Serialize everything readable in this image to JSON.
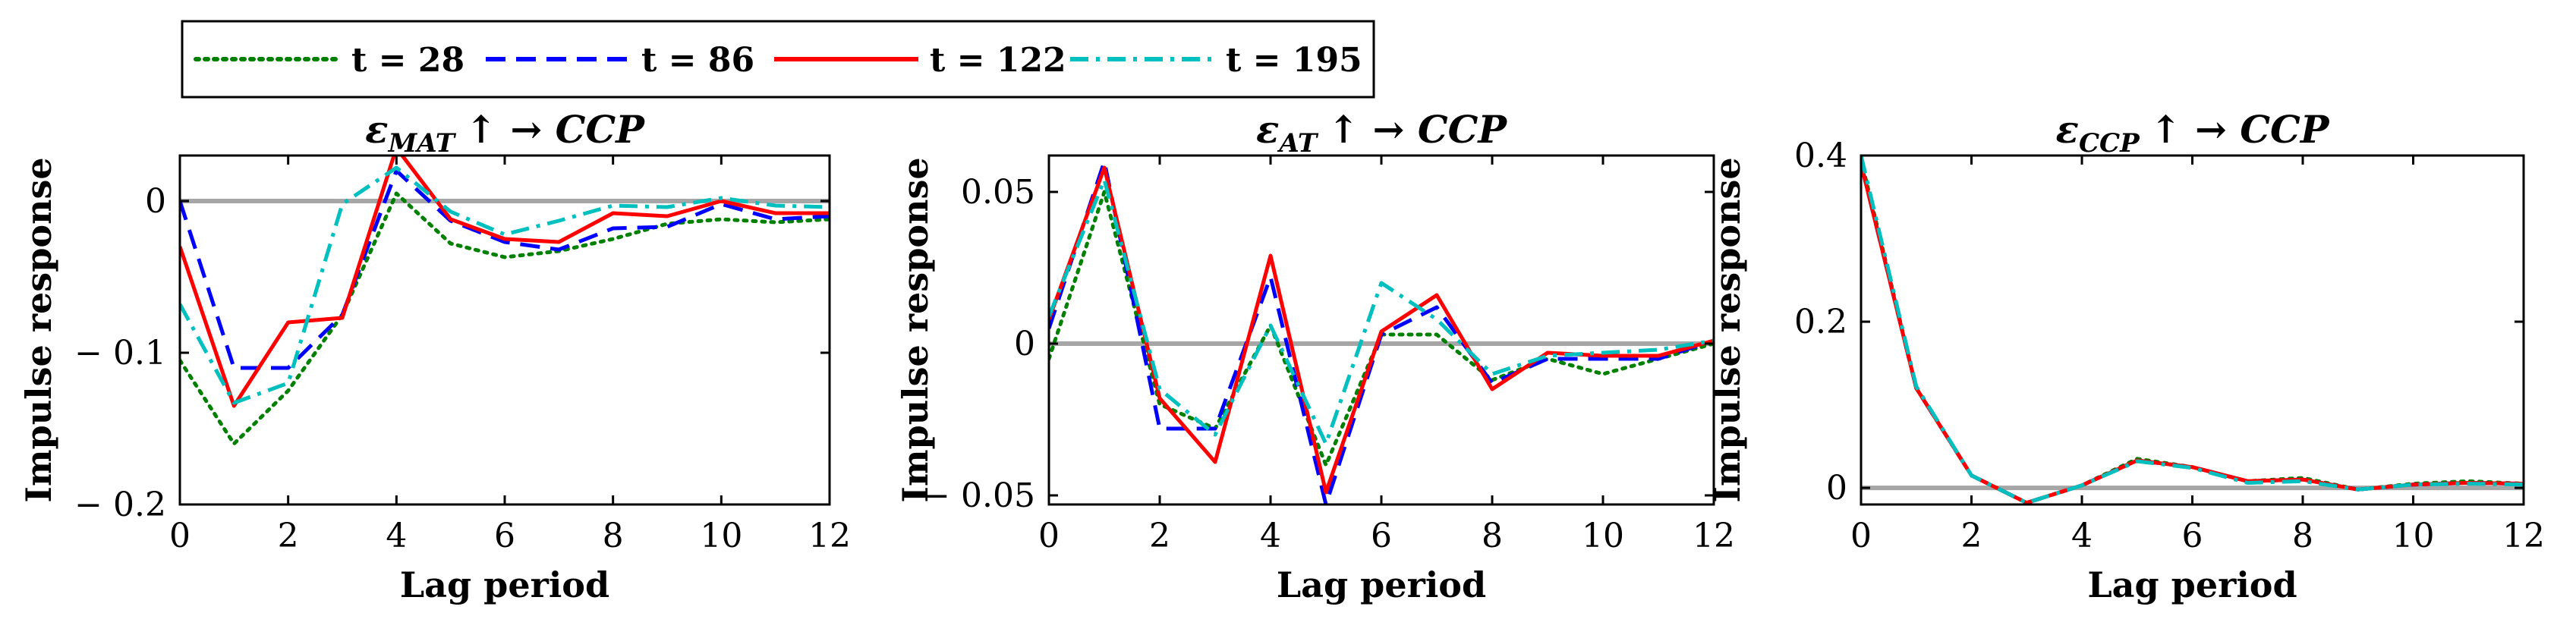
{
  "legend": {
    "entries": [
      {
        "label": "t = 28",
        "color": "#008000",
        "dash": "dotted"
      },
      {
        "label": "t = 86",
        "color": "#0000ff",
        "dash": "dashed"
      },
      {
        "label": "t = 122",
        "color": "#ff0000",
        "dash": "solid"
      },
      {
        "label": "t = 195",
        "color": "#00bfbf",
        "dash": "dashdot"
      }
    ]
  },
  "chart_data": [
    {
      "type": "line",
      "title": "εMAT ↑ →  CCP",
      "title_parts": {
        "sym": "ε",
        "sub": "MAT",
        "rest": "↑ →  CCP"
      },
      "xlabel": "Lag period",
      "ylabel": "Impulse response",
      "xlim": [
        0,
        12
      ],
      "ylim": [
        -0.2,
        0.03
      ],
      "xticks": [
        0,
        2,
        4,
        6,
        8,
        10,
        12
      ],
      "yticks": [
        0,
        -0.1,
        -0.2
      ],
      "ytick_labels": [
        "0",
        "− 0.1",
        "− 0.2"
      ],
      "zero_line": true,
      "x": [
        0,
        1,
        2,
        3,
        4,
        5,
        6,
        7,
        8,
        9,
        10,
        11,
        12
      ],
      "series": [
        {
          "name": "t = 28",
          "values": [
            -0.105,
            -0.16,
            -0.125,
            -0.075,
            0.005,
            -0.028,
            -0.037,
            -0.033,
            -0.025,
            -0.015,
            -0.012,
            -0.014,
            -0.012
          ]
        },
        {
          "name": "t = 86",
          "values": [
            0.0,
            -0.11,
            -0.11,
            -0.075,
            0.02,
            -0.013,
            -0.027,
            -0.032,
            -0.018,
            -0.017,
            -0.002,
            -0.012,
            -0.01
          ]
        },
        {
          "name": "t = 122",
          "values": [
            -0.03,
            -0.135,
            -0.08,
            -0.077,
            0.035,
            -0.012,
            -0.025,
            -0.027,
            -0.008,
            -0.01,
            0.0,
            -0.008,
            -0.008
          ]
        },
        {
          "name": "t = 195",
          "values": [
            -0.068,
            -0.133,
            -0.12,
            -0.002,
            0.022,
            -0.007,
            -0.022,
            -0.013,
            -0.003,
            -0.004,
            0.002,
            -0.003,
            -0.004
          ]
        }
      ]
    },
    {
      "type": "line",
      "title": "εAT ↑ →  CCP",
      "title_parts": {
        "sym": "ε",
        "sub": "AT",
        "rest": "↑ →  CCP"
      },
      "xlabel": "Lag period",
      "ylabel": "Impulse response",
      "xlim": [
        0,
        12
      ],
      "ylim": [
        -0.053,
        0.062
      ],
      "xticks": [
        0,
        2,
        4,
        6,
        8,
        10,
        12
      ],
      "yticks": [
        0.05,
        0,
        -0.05
      ],
      "ytick_labels": [
        "0.05",
        "0",
        "− 0.05"
      ],
      "zero_line": true,
      "x": [
        0,
        1,
        2,
        3,
        4,
        5,
        6,
        7,
        8,
        9,
        10,
        11,
        12
      ],
      "series": [
        {
          "name": "t = 28",
          "values": [
            -0.005,
            0.05,
            -0.02,
            -0.028,
            0.006,
            -0.04,
            0.003,
            0.003,
            -0.012,
            -0.005,
            -0.01,
            -0.005,
            0.0
          ]
        },
        {
          "name": "t = 86",
          "values": [
            0.005,
            0.06,
            -0.028,
            -0.028,
            0.022,
            -0.053,
            0.003,
            0.012,
            -0.013,
            -0.005,
            -0.005,
            -0.005,
            0.001
          ]
        },
        {
          "name": "t = 122",
          "values": [
            0.008,
            0.058,
            -0.018,
            -0.039,
            0.029,
            -0.049,
            0.004,
            0.016,
            -0.015,
            -0.003,
            -0.004,
            -0.004,
            0.001
          ]
        },
        {
          "name": "t = 195",
          "values": [
            0.009,
            0.054,
            -0.015,
            -0.03,
            0.006,
            -0.033,
            0.02,
            0.008,
            -0.01,
            -0.004,
            -0.003,
            -0.002,
            0.001
          ]
        }
      ]
    },
    {
      "type": "line",
      "title": "εCCP ↑ →  CCP",
      "title_parts": {
        "sym": "ε",
        "sub": "CCP",
        "rest": "↑ →  CCP"
      },
      "xlabel": "Lag period",
      "ylabel": "Impulse response",
      "xlim": [
        0,
        12
      ],
      "ylim": [
        -0.02,
        0.4
      ],
      "xticks": [
        0,
        2,
        4,
        6,
        8,
        10,
        12
      ],
      "yticks": [
        0.4,
        0.2,
        0
      ],
      "ytick_labels": [
        "0.4",
        "0.2",
        "0"
      ],
      "zero_line": true,
      "x": [
        0,
        1,
        2,
        3,
        4,
        5,
        6,
        7,
        8,
        9,
        10,
        11,
        12
      ],
      "series": [
        {
          "name": "t = 28",
          "values": [
            0.395,
            0.12,
            0.015,
            -0.018,
            0.003,
            0.035,
            0.025,
            0.008,
            0.012,
            -0.002,
            0.005,
            0.008,
            0.005
          ]
        },
        {
          "name": "t = 86",
          "values": [
            0.39,
            0.12,
            0.015,
            -0.018,
            0.003,
            0.033,
            0.025,
            0.008,
            0.01,
            -0.002,
            0.004,
            0.006,
            0.005
          ]
        },
        {
          "name": "t = 122",
          "values": [
            0.39,
            0.12,
            0.015,
            -0.018,
            0.003,
            0.033,
            0.025,
            0.008,
            0.01,
            -0.002,
            0.004,
            0.006,
            0.005
          ]
        },
        {
          "name": "t = 195",
          "values": [
            0.4,
            0.122,
            0.015,
            -0.018,
            0.003,
            0.032,
            0.024,
            0.006,
            0.008,
            -0.002,
            0.004,
            0.005,
            0.004
          ]
        }
      ]
    }
  ]
}
